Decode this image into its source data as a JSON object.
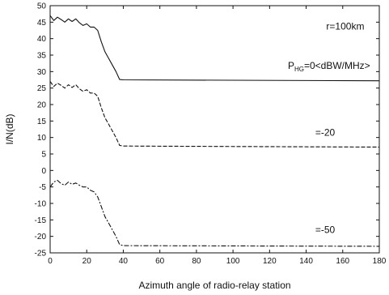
{
  "chart_data": {
    "type": "line",
    "xlabel": "Azimuth angle of radio-relay station",
    "ylabel": "I/N(dB)",
    "xlim": [
      0,
      180
    ],
    "ylim": [
      -25,
      50
    ],
    "xticks": [
      0,
      20,
      40,
      60,
      80,
      100,
      120,
      140,
      160,
      180
    ],
    "yticks": [
      -25,
      -20,
      -15,
      -10,
      -5,
      0,
      5,
      10,
      15,
      20,
      25,
      30,
      35,
      40,
      45,
      50
    ],
    "grid": false,
    "series": [
      {
        "name": "P_HG=0<dBW/MHz>",
        "line_style": "solid",
        "points": [
          [
            0,
            47
          ],
          [
            2,
            45.5
          ],
          [
            4,
            46.5
          ],
          [
            6,
            45.8
          ],
          [
            8,
            45
          ],
          [
            10,
            46
          ],
          [
            12,
            45.2
          ],
          [
            14,
            46
          ],
          [
            16,
            44.8
          ],
          [
            18,
            44
          ],
          [
            20,
            44.5
          ],
          [
            22,
            43.5
          ],
          [
            24,
            43.5
          ],
          [
            26,
            42.5
          ],
          [
            28,
            39
          ],
          [
            30,
            36
          ],
          [
            32,
            34
          ],
          [
            34,
            32
          ],
          [
            36,
            30
          ],
          [
            38,
            27.6
          ],
          [
            40,
            27.5
          ],
          [
            180,
            27.2
          ]
        ]
      },
      {
        "name": "=-20",
        "line_style": "dashed",
        "points": [
          [
            0,
            27
          ],
          [
            2,
            25.5
          ],
          [
            4,
            26.5
          ],
          [
            6,
            25.8
          ],
          [
            8,
            25
          ],
          [
            10,
            26
          ],
          [
            12,
            25.2
          ],
          [
            14,
            26
          ],
          [
            16,
            24.8
          ],
          [
            18,
            24
          ],
          [
            20,
            24.5
          ],
          [
            22,
            23.5
          ],
          [
            24,
            23.5
          ],
          [
            26,
            22.5
          ],
          [
            28,
            19
          ],
          [
            30,
            16
          ],
          [
            32,
            14
          ],
          [
            34,
            12
          ],
          [
            36,
            10
          ],
          [
            38,
            7.6
          ],
          [
            40,
            7.4
          ],
          [
            180,
            7.1
          ]
        ]
      },
      {
        "name": "=-50",
        "line_style": "dashdot",
        "points": [
          [
            0,
            -5
          ],
          [
            2,
            -3.5
          ],
          [
            4,
            -3
          ],
          [
            6,
            -4
          ],
          [
            8,
            -4.5
          ],
          [
            10,
            -3.5
          ],
          [
            12,
            -4.2
          ],
          [
            14,
            -3.8
          ],
          [
            16,
            -4.5
          ],
          [
            18,
            -5
          ],
          [
            20,
            -5
          ],
          [
            22,
            -6
          ],
          [
            24,
            -6.5
          ],
          [
            26,
            -8
          ],
          [
            28,
            -11
          ],
          [
            30,
            -14
          ],
          [
            32,
            -16
          ],
          [
            34,
            -18
          ],
          [
            36,
            -20
          ],
          [
            38,
            -22.5
          ],
          [
            40,
            -22.8
          ],
          [
            180,
            -23
          ]
        ]
      }
    ],
    "annotations": [
      {
        "text": "r=100km"
      },
      {
        "text_main": "P",
        "text_sub": "HG",
        "text_rest": "=0<dBW/MHz>"
      },
      {
        "text": "=-20"
      },
      {
        "text": "=-50"
      }
    ]
  }
}
